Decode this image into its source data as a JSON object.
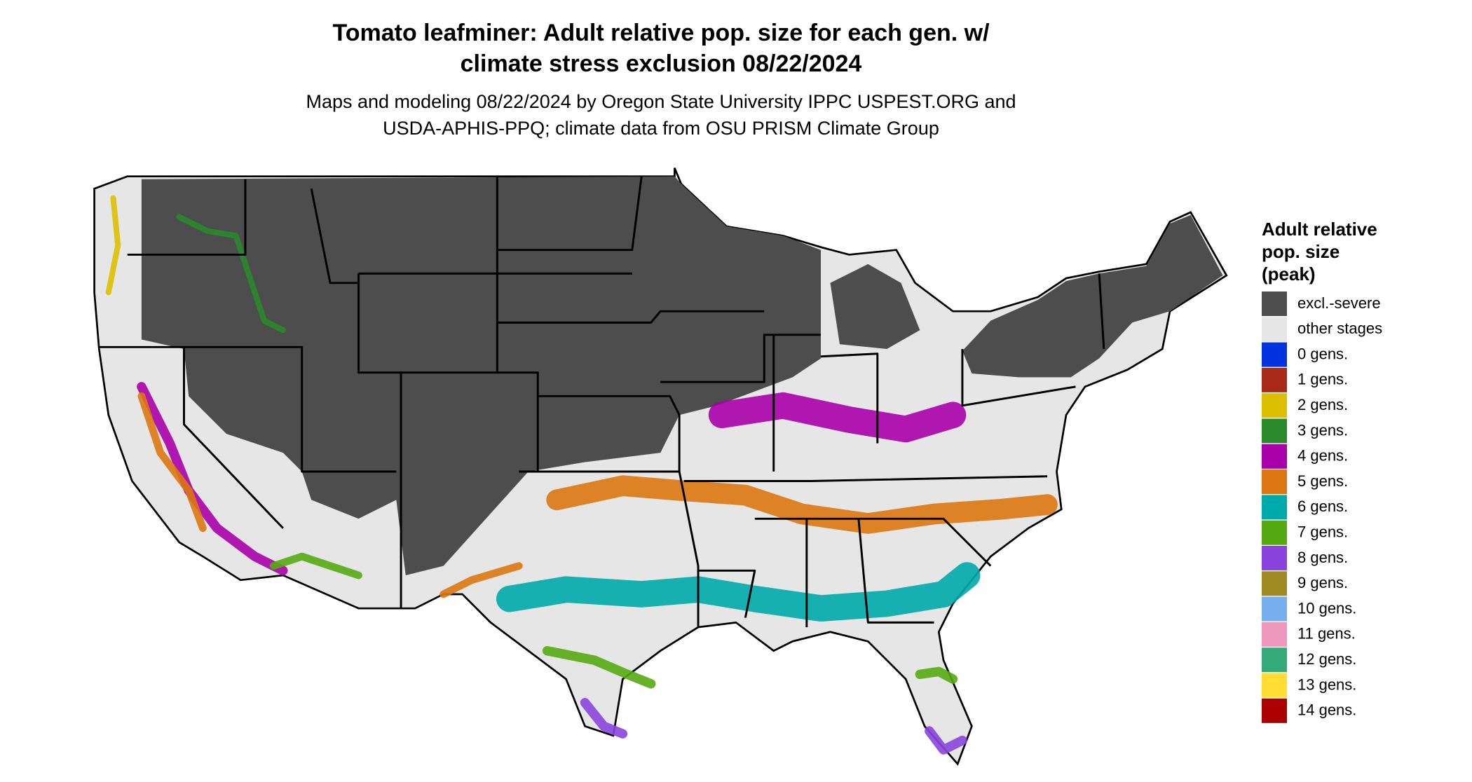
{
  "header": {
    "title": [
      "Tomato leafminer: Adult relative pop. size for each gen. w/",
      "climate stress exclusion 08/22/2024"
    ],
    "subtitle": [
      "Maps and modeling 08/22/2024 by Oregon State University IPPC USPEST.ORG and",
      "USDA-APHIS-PPQ; climate data from OSU PRISM Climate Group"
    ]
  },
  "legend": {
    "title": [
      "Adult relative",
      "pop. size",
      "(peak)"
    ],
    "items": [
      {
        "label": "excl.-severe",
        "color": "#4d4d4d"
      },
      {
        "label": "other stages",
        "color": "#e6e6e6"
      },
      {
        "label": "0 gens.",
        "color": "#0033dd"
      },
      {
        "label": "1 gens.",
        "color": "#aa2a1a"
      },
      {
        "label": "2 gens.",
        "color": "#dcc000"
      },
      {
        "label": "3 gens.",
        "color": "#2a8a2a"
      },
      {
        "label": "4 gens.",
        "color": "#aa00aa"
      },
      {
        "label": "5 gens.",
        "color": "#dd7711"
      },
      {
        "label": "6 gens.",
        "color": "#00aaaa"
      },
      {
        "label": "7 gens.",
        "color": "#55aa11"
      },
      {
        "label": "8 gens.",
        "color": "#8a44dd"
      },
      {
        "label": "9 gens.",
        "color": "#a08a22"
      },
      {
        "label": "10 gens.",
        "color": "#77b0ee"
      },
      {
        "label": "11 gens.",
        "color": "#ee99bb"
      },
      {
        "label": "12 gens.",
        "color": "#33aa77"
      },
      {
        "label": "13 gens.",
        "color": "#ffdd33"
      },
      {
        "label": "14 gens.",
        "color": "#aa0000"
      }
    ]
  }
}
